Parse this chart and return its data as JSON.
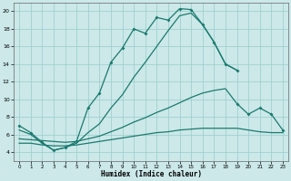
{
  "xlabel": "Humidex (Indice chaleur)",
  "xlim": [
    -0.5,
    23.5
  ],
  "ylim": [
    3,
    21
  ],
  "yticks": [
    4,
    6,
    8,
    10,
    12,
    14,
    16,
    18,
    20
  ],
  "xticks": [
    0,
    1,
    2,
    3,
    4,
    5,
    6,
    7,
    8,
    9,
    10,
    11,
    12,
    13,
    14,
    15,
    16,
    17,
    18,
    19,
    20,
    21,
    22,
    23
  ],
  "background_color": "#cce8e8",
  "grid_color": "#99cccc",
  "line_color": "#1a7a6e",
  "line1_x": [
    0,
    1,
    2,
    3,
    4,
    5,
    6,
    7,
    8,
    9,
    10,
    11,
    12,
    13,
    14,
    15,
    16,
    17,
    18,
    19
  ],
  "line1_y": [
    7.0,
    6.2,
    5.1,
    4.2,
    4.5,
    5.2,
    9.0,
    10.7,
    14.2,
    15.8,
    18.0,
    17.5,
    19.3,
    19.0,
    20.3,
    20.2,
    18.5,
    16.5,
    14.0,
    13.3
  ],
  "line2_x": [
    0,
    1,
    2,
    3,
    4,
    5,
    6,
    7,
    8,
    9,
    10,
    11,
    12,
    13,
    14,
    15,
    16,
    17,
    18,
    19
  ],
  "line2_y": [
    6.5,
    6.0,
    5.0,
    4.2,
    4.5,
    5.0,
    6.2,
    7.2,
    9.0,
    10.5,
    12.5,
    14.2,
    16.0,
    17.8,
    19.5,
    19.8,
    18.5,
    16.5,
    14.0,
    13.3
  ],
  "line3_x": [
    0,
    1,
    2,
    3,
    4,
    5,
    6,
    7,
    8,
    9,
    10,
    11,
    12,
    13,
    14,
    15,
    16,
    17,
    18,
    19,
    20,
    21,
    22,
    23
  ],
  "line3_y": [
    5.5,
    5.4,
    5.3,
    5.2,
    5.1,
    5.2,
    5.5,
    5.8,
    6.3,
    6.8,
    7.4,
    7.9,
    8.5,
    9.0,
    9.6,
    10.2,
    10.7,
    11.0,
    11.2,
    9.5,
    8.3,
    9.0,
    8.3,
    6.5
  ],
  "line4_x": [
    0,
    1,
    2,
    3,
    4,
    5,
    6,
    7,
    8,
    9,
    10,
    11,
    12,
    13,
    14,
    15,
    16,
    17,
    18,
    19,
    20,
    21,
    22,
    23
  ],
  "line4_y": [
    5.0,
    5.0,
    4.8,
    4.7,
    4.7,
    4.8,
    5.0,
    5.2,
    5.4,
    5.6,
    5.8,
    6.0,
    6.2,
    6.3,
    6.5,
    6.6,
    6.7,
    6.7,
    6.7,
    6.7,
    6.5,
    6.3,
    6.2,
    6.2
  ]
}
